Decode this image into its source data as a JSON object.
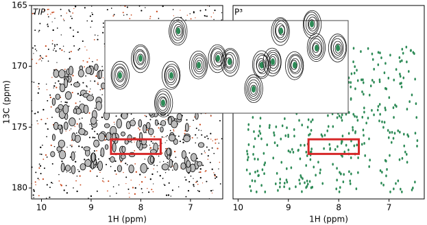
{
  "chart_data": [
    {
      "type": "spectrum",
      "title": "TIP",
      "x_label": "1H (ppm)",
      "y_label": "13C (ppm)",
      "xlim": [
        10.2,
        6.35
      ],
      "ylim": [
        165,
        180.9
      ],
      "xticks": [
        10,
        9,
        8,
        7
      ],
      "yticks": [
        165,
        170,
        175,
        180
      ],
      "color": "#000000",
      "box": {
        "x": [
          8.6,
          7.6
        ],
        "y": [
          176,
          177.2
        ],
        "color": "#d62728"
      }
    },
    {
      "type": "spectrum",
      "title": "P³",
      "x_label": "1H (ppm)",
      "xlim": [
        10.1,
        6.3
      ],
      "ylim": [
        165,
        180.9
      ],
      "xticks": [
        10,
        9,
        8,
        7
      ],
      "color": "#2e8b57",
      "box": {
        "x": [
          8.6,
          7.6
        ],
        "y": [
          176,
          177.2
        ],
        "color": "#d62728"
      }
    }
  ]
}
